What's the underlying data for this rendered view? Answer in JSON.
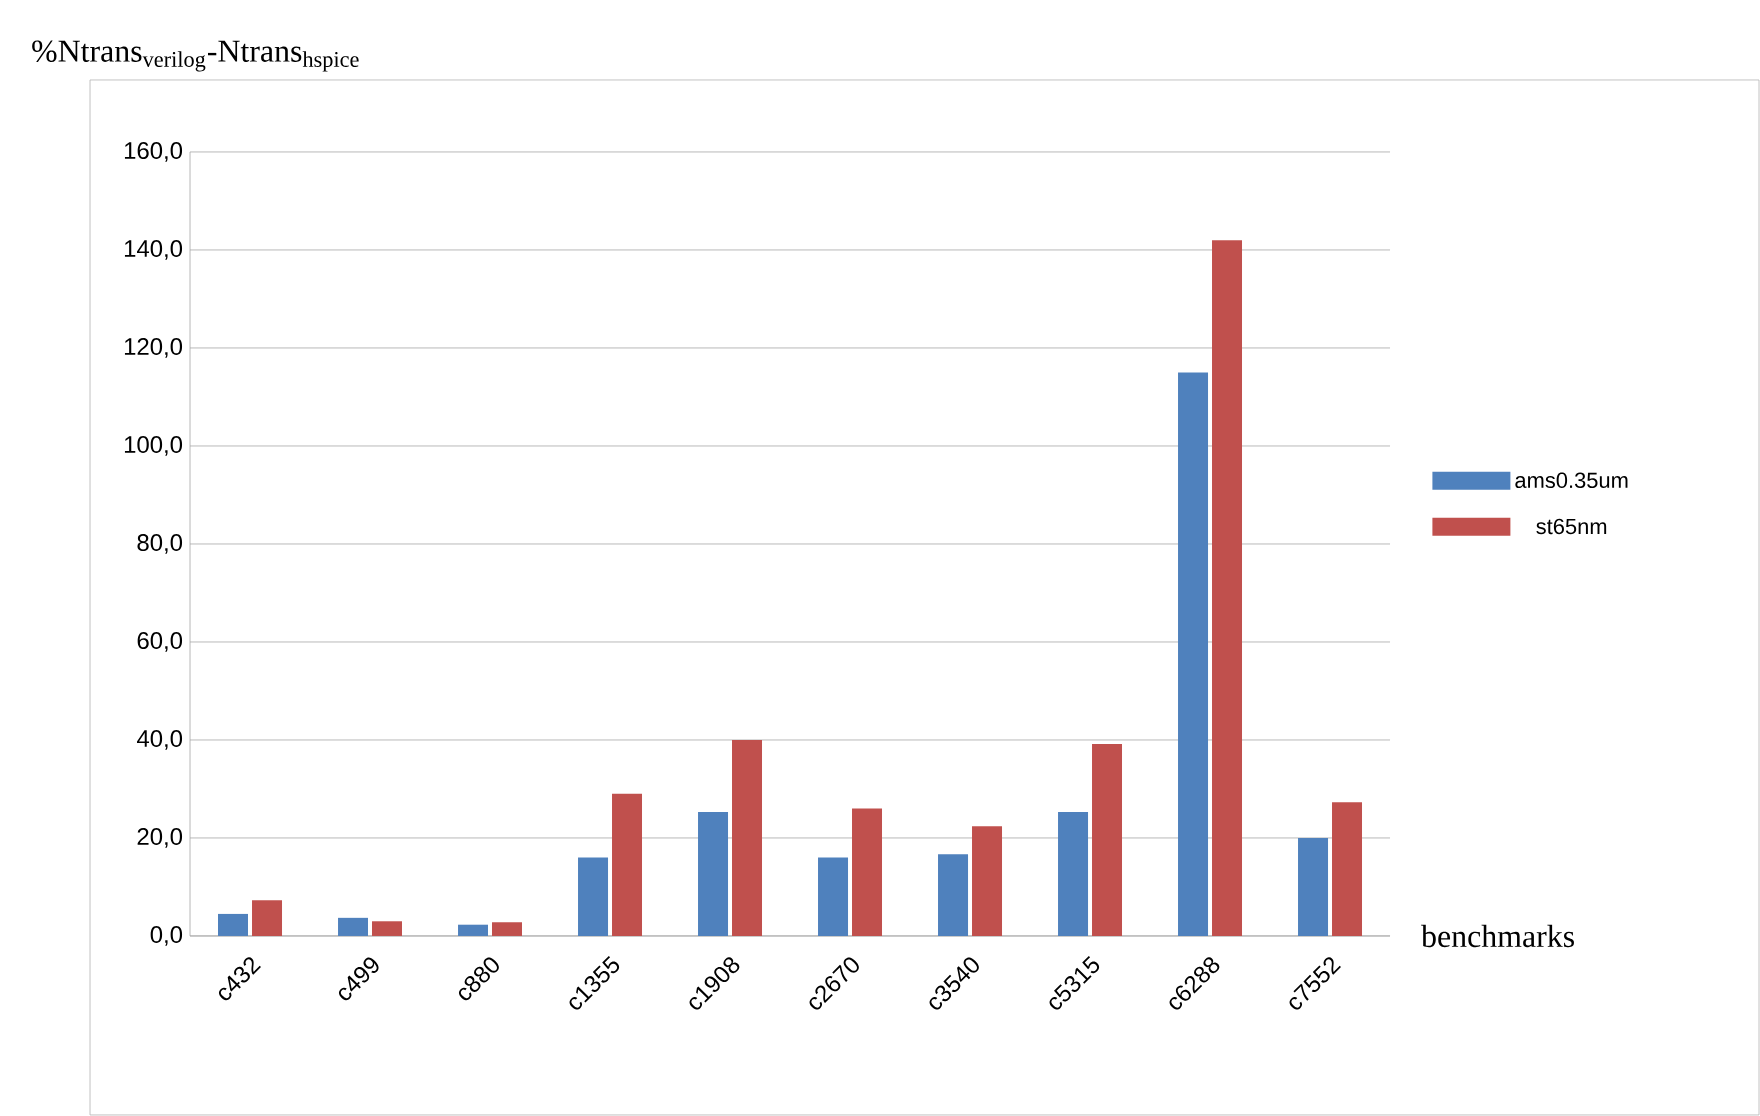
{
  "chart_data": {
    "type": "bar",
    "title": "%Ntrans$_{verilog}$-Ntrans$_{hspice}$",
    "xlabel": "benchmarks",
    "categories": [
      "c432",
      "c499",
      "c880",
      "c1355",
      "c1908",
      "c2670",
      "c3540",
      "c5315",
      "c6288",
      "c7552"
    ],
    "series": [
      {
        "name": "ams0.35um",
        "color": "#4f81bd",
        "values": [
          4.5,
          3.7,
          2.3,
          16,
          25.3,
          16,
          16.7,
          25.3,
          115,
          20
        ]
      },
      {
        "name": "st65nm",
        "color": "#c0504d",
        "values": [
          7.3,
          3,
          2.8,
          29,
          40,
          26,
          22.4,
          39.2,
          142,
          27.3
        ]
      }
    ],
    "ylim": [
      0,
      160
    ],
    "yticks": [
      {
        "value": 0,
        "label": "0,0"
      },
      {
        "value": 20,
        "label": "20,0"
      },
      {
        "value": 40,
        "label": "40,0"
      },
      {
        "value": 60,
        "label": "60,0"
      },
      {
        "value": 80,
        "label": "80,0"
      },
      {
        "value": 100,
        "label": "100,0"
      },
      {
        "value": 120,
        "label": "120,0"
      },
      {
        "value": 140,
        "label": "140,0"
      },
      {
        "value": 160,
        "label": "160,0"
      }
    ],
    "grid": "y",
    "legend": "right"
  }
}
